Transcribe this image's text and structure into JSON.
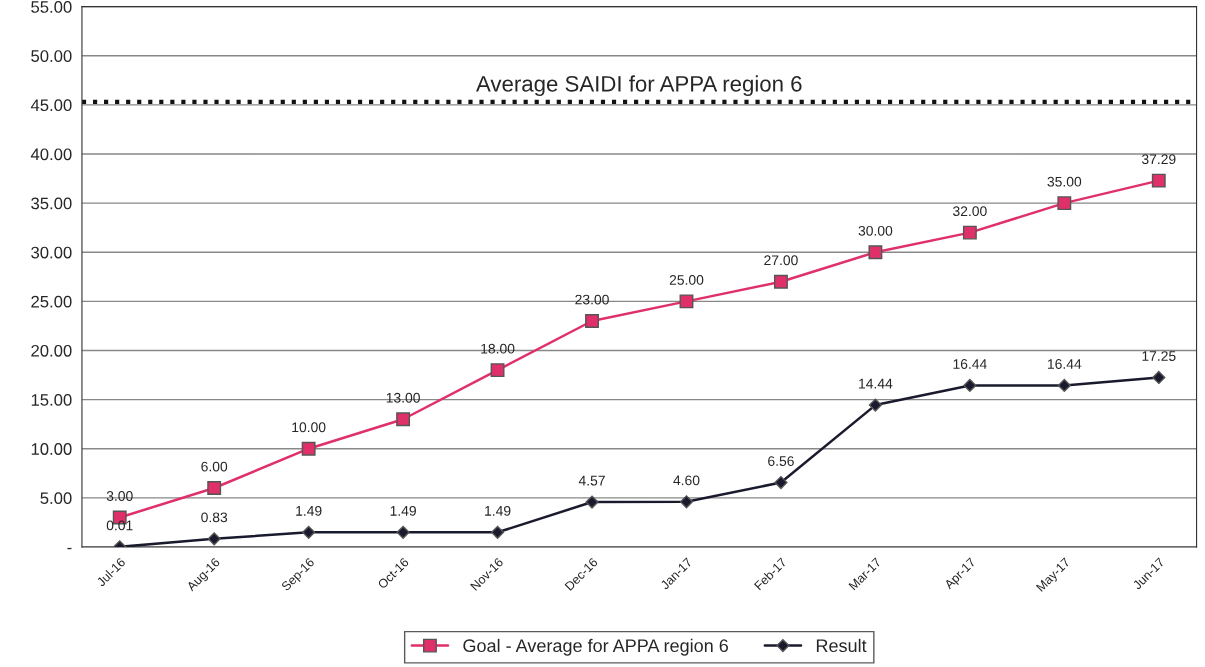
{
  "chart_data": {
    "type": "line",
    "categories": [
      "Jul-16",
      "Aug-16",
      "Sep-16",
      "Oct-16",
      "Nov-16",
      "Dec-16",
      "Jan-17",
      "Feb-17",
      "Mar-17",
      "Apr-17",
      "May-17",
      "Jun-17"
    ],
    "series": [
      {
        "name": "Goal - Average for APPA region 6",
        "color": "#e0306a",
        "marker": "square",
        "values": [
          3.0,
          6.0,
          10.0,
          13.0,
          18.0,
          23.0,
          25.0,
          27.0,
          30.0,
          32.0,
          35.0,
          37.29
        ],
        "value_labels": [
          "3.00",
          "6.00",
          "10.00",
          "13.00",
          "18.00",
          "23.00",
          "25.00",
          "27.00",
          "30.00",
          "32.00",
          "35.00",
          "37.29"
        ]
      },
      {
        "name": "Result",
        "color": "#1a1a2e",
        "marker": "diamond",
        "values": [
          0.01,
          0.83,
          1.49,
          1.49,
          1.49,
          4.57,
          4.6,
          6.56,
          14.44,
          16.44,
          16.44,
          17.25
        ],
        "value_labels": [
          "0.01",
          "0.83",
          "1.49",
          "1.49",
          "1.49",
          "4.57",
          "4.60",
          "6.56",
          "14.44",
          "16.44",
          "16.44",
          "17.25"
        ]
      }
    ],
    "ylim": [
      0,
      55
    ],
    "yticks": [
      {
        "value": 0,
        "label": "-"
      },
      {
        "value": 5,
        "label": "5.00"
      },
      {
        "value": 10,
        "label": "10.00"
      },
      {
        "value": 15,
        "label": "15.00"
      },
      {
        "value": 20,
        "label": "20.00"
      },
      {
        "value": 25,
        "label": "25.00"
      },
      {
        "value": 30,
        "label": "30.00"
      },
      {
        "value": 35,
        "label": "35.00"
      },
      {
        "value": 40,
        "label": "40.00"
      },
      {
        "value": 45,
        "label": "45.00"
      },
      {
        "value": 50,
        "label": "50.00"
      },
      {
        "value": 55,
        "label": "55.00"
      }
    ],
    "ref_lines": [
      {
        "axis": "y",
        "value": 45.3,
        "label": "Average SAIDI for APPA region 6",
        "color": "#111111",
        "line_style": "dotted"
      }
    ],
    "grid": "y",
    "legend": "bottom"
  }
}
